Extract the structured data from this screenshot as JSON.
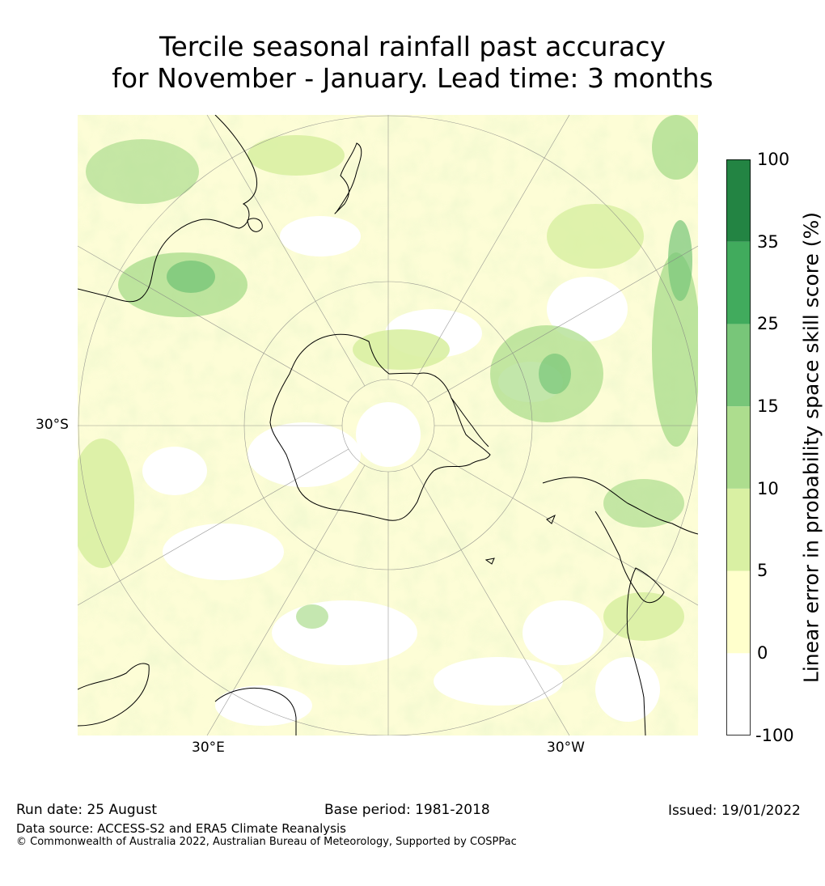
{
  "title": {
    "line1": "Tercile seasonal rainfall past accuracy",
    "line2": "for November - January. Lead time: 3 months"
  },
  "map": {
    "projection": "south-polar stereographic",
    "lat_labels": [
      "30°S"
    ],
    "lon_labels": [
      "30°E",
      "30°W"
    ]
  },
  "colorbar": {
    "title": "Linear error in probability space skill score (%)",
    "ticks": [
      "100",
      "35",
      "25",
      "15",
      "10",
      "5",
      "0",
      "-100"
    ],
    "classes": [
      {
        "from": "-100",
        "to": "0",
        "color": "#ffffff"
      },
      {
        "from": "0",
        "to": "5",
        "color": "#ffffcc"
      },
      {
        "from": "5",
        "to": "10",
        "color": "#d9f0a3"
      },
      {
        "from": "10",
        "to": "15",
        "color": "#addd8e"
      },
      {
        "from": "15",
        "to": "25",
        "color": "#78c679"
      },
      {
        "from": "25",
        "to": "35",
        "color": "#41ab5d"
      },
      {
        "from": "35",
        "to": "100",
        "color": "#238443"
      }
    ]
  },
  "footer": {
    "run_date": "Run date: 25 August",
    "base_period": "Base period: 1981-2018",
    "issued": "Issued: 19/01/2022",
    "data_source": "Data source: ACCESS-S2 and ERA5 Climate Reanalysis",
    "copyright": "© Commonwealth of Australia 2022, Australian Bureau of Meteorology, Supported by COSPPac"
  }
}
